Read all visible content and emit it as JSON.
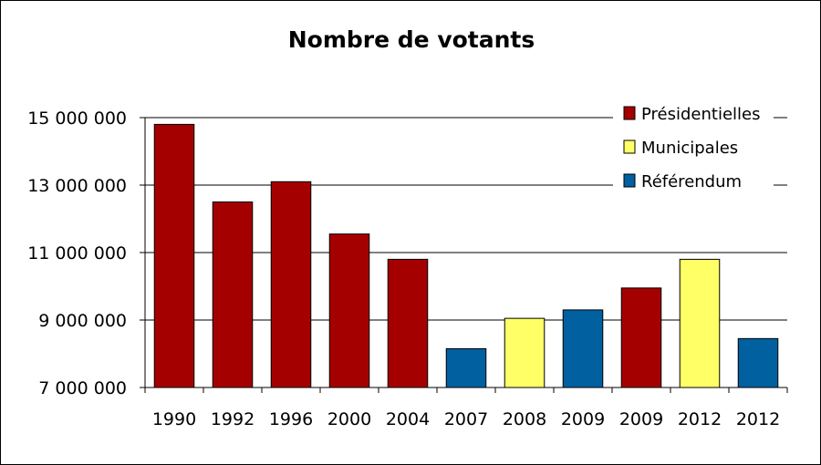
{
  "chart_data": {
    "type": "bar",
    "title": "Nombre de votants",
    "xlabel": "",
    "ylabel": "",
    "ylim": [
      7000000,
      15000000
    ],
    "yticks": [
      7000000,
      9000000,
      11000000,
      13000000,
      15000000
    ],
    "ytick_labels": [
      "7 000 000",
      "9 000 000",
      "11 000 000",
      "13 000 000",
      "15 000 000"
    ],
    "grid": true,
    "legend_position": "top-right",
    "categories": [
      "1990",
      "1992",
      "1996",
      "2000",
      "2004",
      "2007",
      "2008",
      "2009",
      "2009",
      "2012",
      "2012"
    ],
    "values": [
      14800000,
      12500000,
      13100000,
      11550000,
      10800000,
      8150000,
      9050000,
      9300000,
      9950000,
      10800000,
      8450000
    ],
    "bar_types": [
      "Présidentielles",
      "Présidentielles",
      "Présidentielles",
      "Présidentielles",
      "Présidentielles",
      "Référendum",
      "Municipales",
      "Référendum",
      "Présidentielles",
      "Municipales",
      "Référendum"
    ],
    "legend": [
      {
        "name": "Présidentielles",
        "color": "#A50000"
      },
      {
        "name": "Municipales",
        "color": "#FFFF66"
      },
      {
        "name": "Référendum",
        "color": "#0060A0"
      }
    ]
  }
}
